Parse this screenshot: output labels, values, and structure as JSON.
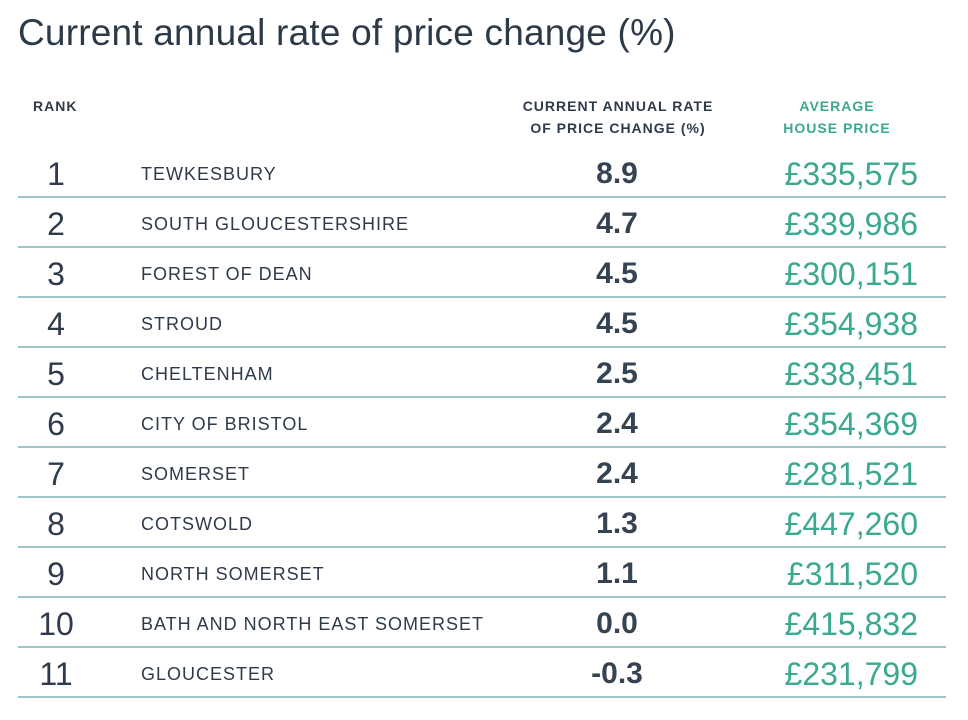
{
  "chart_data": {
    "type": "table",
    "title": "Current annual rate of price change (%)",
    "columns": {
      "rank": "RANK",
      "change": [
        "CURRENT ANNUAL RATE",
        "OF PRICE CHANGE (%)"
      ],
      "price": [
        "AVERAGE",
        "HOUSE PRICE"
      ]
    },
    "rows": [
      {
        "rank": "1",
        "area": "TEWKESBURY",
        "change": "8.9",
        "price": "£335,575"
      },
      {
        "rank": "2",
        "area": "SOUTH GLOUCESTERSHIRE",
        "change": "4.7",
        "price": "£339,986"
      },
      {
        "rank": "3",
        "area": "FOREST OF DEAN",
        "change": "4.5",
        "price": "£300,151"
      },
      {
        "rank": "4",
        "area": "STROUD",
        "change": "4.5",
        "price": "£354,938"
      },
      {
        "rank": "5",
        "area": "CHELTENHAM",
        "change": "2.5",
        "price": "£338,451"
      },
      {
        "rank": "6",
        "area": "CITY OF BRISTOL",
        "change": "2.4",
        "price": "£354,369"
      },
      {
        "rank": "7",
        "area": "SOMERSET",
        "change": "2.4",
        "price": "£281,521"
      },
      {
        "rank": "8",
        "area": "COTSWOLD",
        "change": "1.3",
        "price": "£447,260"
      },
      {
        "rank": "9",
        "area": "NORTH SOMERSET",
        "change": "1.1",
        "price": "£311,520"
      },
      {
        "rank": "10",
        "area": "BATH AND NORTH EAST SOMERSET",
        "change": "0.0",
        "price": "£415,832"
      },
      {
        "rank": "11",
        "area": "GLOUCESTER",
        "change": "-0.3",
        "price": "£231,799"
      }
    ]
  },
  "colors": {
    "text_dark": "#2f3a4a",
    "accent_green": "#3aa98f",
    "divider": "#9ec7c9"
  }
}
